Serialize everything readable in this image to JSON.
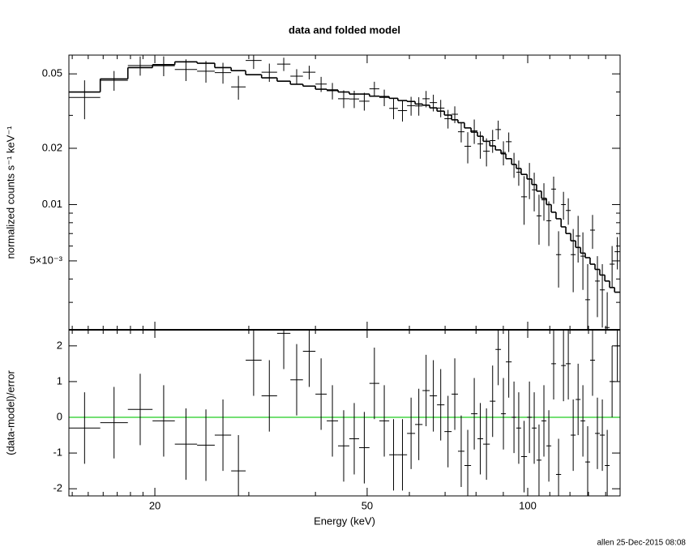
{
  "chart_data": {
    "type": "spectrum",
    "title": "data and folded model",
    "xlabel": "Energy (keV)",
    "footer": "allen 25-Dec-2015 08:08",
    "log_x": true,
    "xlim": [
      13.8,
      149
    ],
    "xticks": [
      20,
      50,
      100
    ],
    "xminor": [
      14,
      15,
      16,
      17,
      18,
      19,
      30,
      40,
      60,
      70,
      80,
      90,
      110,
      120,
      130,
      140
    ],
    "bins": [
      13.8,
      15.8,
      17.8,
      19.8,
      21.8,
      24.0,
      25.9,
      27.8,
      29.6,
      31.7,
      33.9,
      35.9,
      37.9,
      40.0,
      42.0,
      44.1,
      46.3,
      48.3,
      50.5,
      52.7,
      55.0,
      57.1,
      59.4,
      61.5,
      63.5,
      65.5,
      67.6,
      69.8,
      72.0,
      74.0,
      76.1,
      78.3,
      80.5,
      82.5,
      84.9,
      87.0,
      89.1,
      91.0,
      93.3,
      95.2,
      97.2,
      99.7,
      101.8,
      103.9,
      106.1,
      108.4,
      110.7,
      113.0,
      115.5,
      117.9,
      120.4,
      123.0,
      125.6,
      128.2,
      130.9,
      133.7,
      136.5,
      139.5,
      142.4,
      145.5,
      149.0
    ],
    "panels": [
      {
        "ylabel": "normalized counts s⁻¹ keV⁻¹",
        "log_y": true,
        "ylim": [
          0.00214,
          0.063
        ],
        "yticks": [
          0.01,
          0.02,
          0.05,
          {
            "value": 0.005,
            "label": "5×10⁻³"
          }
        ],
        "yminor": [
          0.003,
          0.004,
          0.006,
          0.007,
          0.008,
          0.009,
          0.03,
          0.04
        ],
        "color": "#000000",
        "model_color": "#000000",
        "values": [
          0.0374,
          0.0462,
          0.0554,
          0.0553,
          0.0528,
          0.0517,
          0.0508,
          0.0426,
          0.059,
          0.051,
          0.0564,
          0.0486,
          0.051,
          0.0441,
          0.0406,
          0.0368,
          0.0367,
          0.0357,
          0.0416,
          0.0374,
          0.0327,
          0.0318,
          0.0338,
          0.0337,
          0.0368,
          0.0351,
          0.0328,
          0.0288,
          0.0304,
          0.0245,
          0.0205,
          0.0248,
          0.0211,
          0.0193,
          0.022,
          0.0252,
          0.019,
          0.0217,
          0.0164,
          0.0149,
          0.011,
          0.0137,
          0.012,
          0.0087,
          0.0106,
          0.0082,
          0.0121,
          0.0054,
          0.01,
          0.0093,
          0.0054,
          0.0068,
          0.0053,
          0.0031,
          0.0073,
          0.0039,
          0.0035,
          0.0022,
          0.0048,
          0.0056
        ],
        "errors": [
          0.0088,
          0.0056,
          0.0065,
          0.0067,
          0.007,
          0.0068,
          0.0065,
          0.0062,
          0.0059,
          0.0057,
          0.0046,
          0.0044,
          0.0043,
          0.0041,
          0.0041,
          0.004,
          0.0039,
          0.0039,
          0.0038,
          0.0038,
          0.0041,
          0.004,
          0.0039,
          0.0038,
          0.0037,
          0.0036,
          0.0035,
          0.0033,
          0.0031,
          0.003,
          0.0039,
          0.0037,
          0.0035,
          0.0033,
          0.0031,
          0.0029,
          0.0028,
          0.0026,
          0.0025,
          0.0023,
          0.0032,
          0.003,
          0.0028,
          0.0026,
          0.0024,
          0.0022,
          0.002,
          0.0018,
          0.0017,
          0.0015,
          0.002,
          0.0019,
          0.0018,
          0.0017,
          0.0015,
          0.0014,
          0.0013,
          0.0012,
          0.0012,
          0.0011
        ],
        "model": [
          0.04,
          0.047,
          0.054,
          0.056,
          0.058,
          0.057,
          0.054,
          0.052,
          0.0495,
          0.0476,
          0.0457,
          0.044,
          0.043,
          0.0414,
          0.041,
          0.04,
          0.039,
          0.039,
          0.038,
          0.0378,
          0.037,
          0.036,
          0.0356,
          0.0345,
          0.034,
          0.0329,
          0.0316,
          0.0301,
          0.0284,
          0.0274,
          0.0257,
          0.0244,
          0.0232,
          0.0218,
          0.0206,
          0.0196,
          0.0187,
          0.0176,
          0.0164,
          0.0156,
          0.0145,
          0.0137,
          0.0128,
          0.0118,
          0.0108,
          0.01,
          0.0091,
          0.0084,
          0.0076,
          0.007,
          0.0064,
          0.0059,
          0.0055,
          0.0052,
          0.0048,
          0.0045,
          0.0042,
          0.0039,
          0.0036,
          0.0034
        ]
      },
      {
        "ylabel": "(data-model)/error",
        "log_y": false,
        "ylim": [
          -2.2,
          2.45
        ],
        "yticks": [
          -2,
          -1,
          0,
          1,
          2
        ],
        "color": "#000000",
        "reference_line": 0,
        "reference_color": "#22cc22",
        "values": [
          -0.3,
          -0.15,
          0.22,
          -0.1,
          -0.75,
          -0.78,
          -0.5,
          -1.5,
          1.6,
          0.6,
          2.35,
          1.05,
          1.85,
          0.65,
          -0.1,
          -0.8,
          -0.6,
          -0.85,
          0.95,
          -0.1,
          -1.05,
          -1.05,
          -0.45,
          -0.2,
          0.75,
          0.6,
          0.35,
          -0.4,
          0.65,
          -0.95,
          -1.35,
          0.1,
          -0.6,
          -0.75,
          0.45,
          1.9,
          0.1,
          1.55,
          0,
          -0.3,
          -1.1,
          0,
          -0.3,
          -1.2,
          -0.1,
          -0.8,
          1.5,
          -1.6,
          1.45,
          1.5,
          -0.5,
          0.5,
          -0.1,
          -1.25,
          1.6,
          -0.45,
          -0.5,
          -1.35,
          1.0,
          2.0
        ],
        "errors": [
          1,
          1,
          1,
          1,
          1,
          1,
          1,
          1,
          1,
          1,
          1,
          1,
          1,
          1,
          1,
          1,
          1,
          1,
          1,
          1,
          1,
          1,
          1,
          1,
          1,
          1,
          1,
          1,
          1,
          1,
          1,
          1,
          1,
          1,
          1,
          1,
          1,
          1,
          1,
          1,
          1,
          1,
          1,
          1,
          1,
          1,
          1,
          1,
          1,
          1,
          1,
          1,
          1,
          1,
          1,
          1,
          1,
          1,
          1,
          1
        ]
      }
    ]
  }
}
